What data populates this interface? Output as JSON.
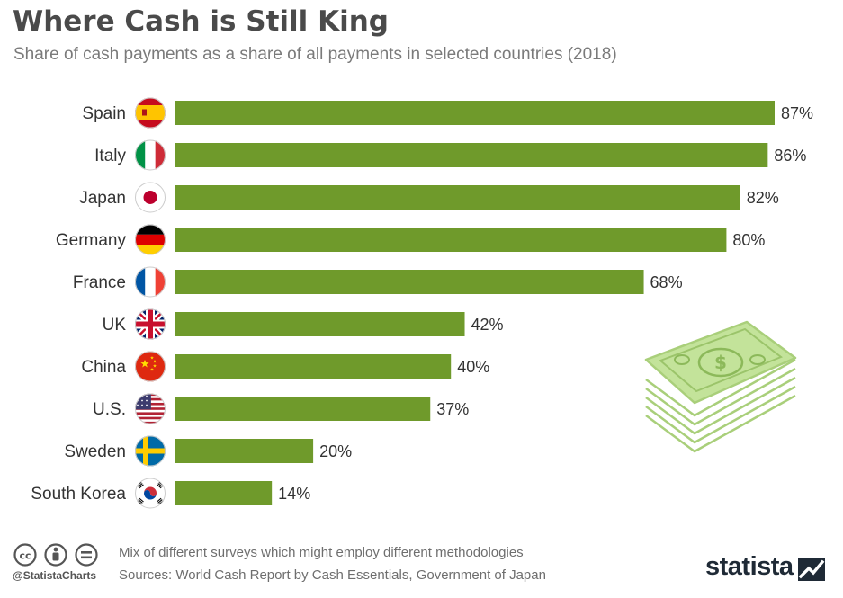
{
  "title": "Where Cash is Still King",
  "subtitle": "Share of cash payments as a share of all payments in selected countries (2018)",
  "colors": {
    "bar": "#6f9a2b",
    "text": "#333333",
    "title": "#4a4a4a",
    "muted": "#6e6e6e",
    "money_green": "#b5d98a"
  },
  "chart_data": {
    "type": "bar",
    "orientation": "horizontal",
    "categories": [
      "Spain",
      "Italy",
      "Japan",
      "Germany",
      "France",
      "UK",
      "China",
      "U.S.",
      "Sweden",
      "South Korea"
    ],
    "values": [
      87,
      86,
      82,
      80,
      68,
      42,
      40,
      37,
      20,
      14
    ],
    "value_labels": [
      "87%",
      "86%",
      "82%",
      "80%",
      "68%",
      "42%",
      "40%",
      "37%",
      "20%",
      "14%"
    ],
    "unit": "%",
    "grid": false,
    "legend": "none"
  },
  "flags": [
    "spain-flag",
    "italy-flag",
    "japan-flag",
    "germany-flag",
    "france-flag",
    "uk-flag",
    "china-flag",
    "us-flag",
    "sweden-flag",
    "south-korea-flag"
  ],
  "footer": {
    "note": "Mix of different surveys which might employ different methodologies",
    "source": "Sources: World Cash Report by Cash Essentials, Government of Japan",
    "handle": "@StatistaCharts",
    "brand": "statista"
  }
}
